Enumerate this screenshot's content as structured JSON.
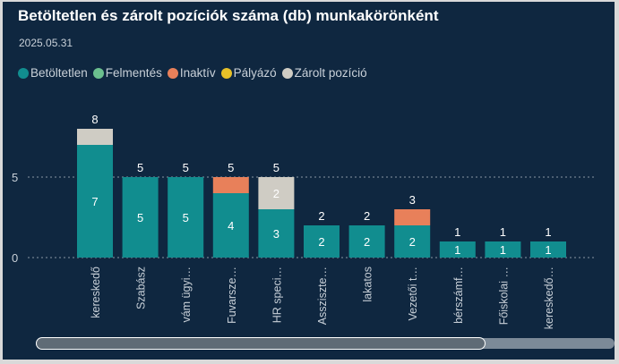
{
  "chart_data": {
    "type": "bar",
    "stacked": true,
    "title": "Betöltetlen és zárolt pozíciók száma (db) munkakörönként",
    "subtitle": "2025.05.31",
    "legend_position": "top-left",
    "ylim": [
      0,
      9
    ],
    "yticks": [
      "0",
      "5"
    ],
    "categories": [
      "kereskedő",
      "Szabász",
      "vám ügyi…",
      "Fuvarsze…",
      "HR speci…",
      "Asszisztе…",
      "lakatos",
      "Vezetői t…",
      "bérszámf…",
      "Főiskolai …",
      "kereskedő…"
    ],
    "series": [
      {
        "name": "Betöltetlen",
        "color": "#118d8f",
        "values": [
          7,
          5,
          5,
          4,
          3,
          2,
          2,
          2,
          1,
          1,
          1
        ]
      },
      {
        "name": "Felmentés",
        "color": "#6bbf8e",
        "values": [
          0,
          0,
          0,
          0,
          0,
          0,
          0,
          0,
          0,
          0,
          0
        ]
      },
      {
        "name": "Inaktív",
        "color": "#e8805a",
        "values": [
          0,
          0,
          0,
          1,
          0,
          0,
          0,
          1,
          0,
          0,
          0
        ]
      },
      {
        "name": "Pályázó",
        "color": "#e6c028",
        "values": [
          0,
          0,
          0,
          0,
          0,
          0,
          0,
          0,
          0,
          0,
          0
        ]
      },
      {
        "name": "Zárolt pozíció",
        "color": "#cfccc4",
        "values": [
          1,
          0,
          0,
          0,
          2,
          0,
          0,
          0,
          0,
          0,
          0
        ]
      }
    ],
    "totals": [
      8,
      5,
      5,
      5,
      5,
      2,
      2,
      3,
      1,
      1,
      1
    ]
  }
}
